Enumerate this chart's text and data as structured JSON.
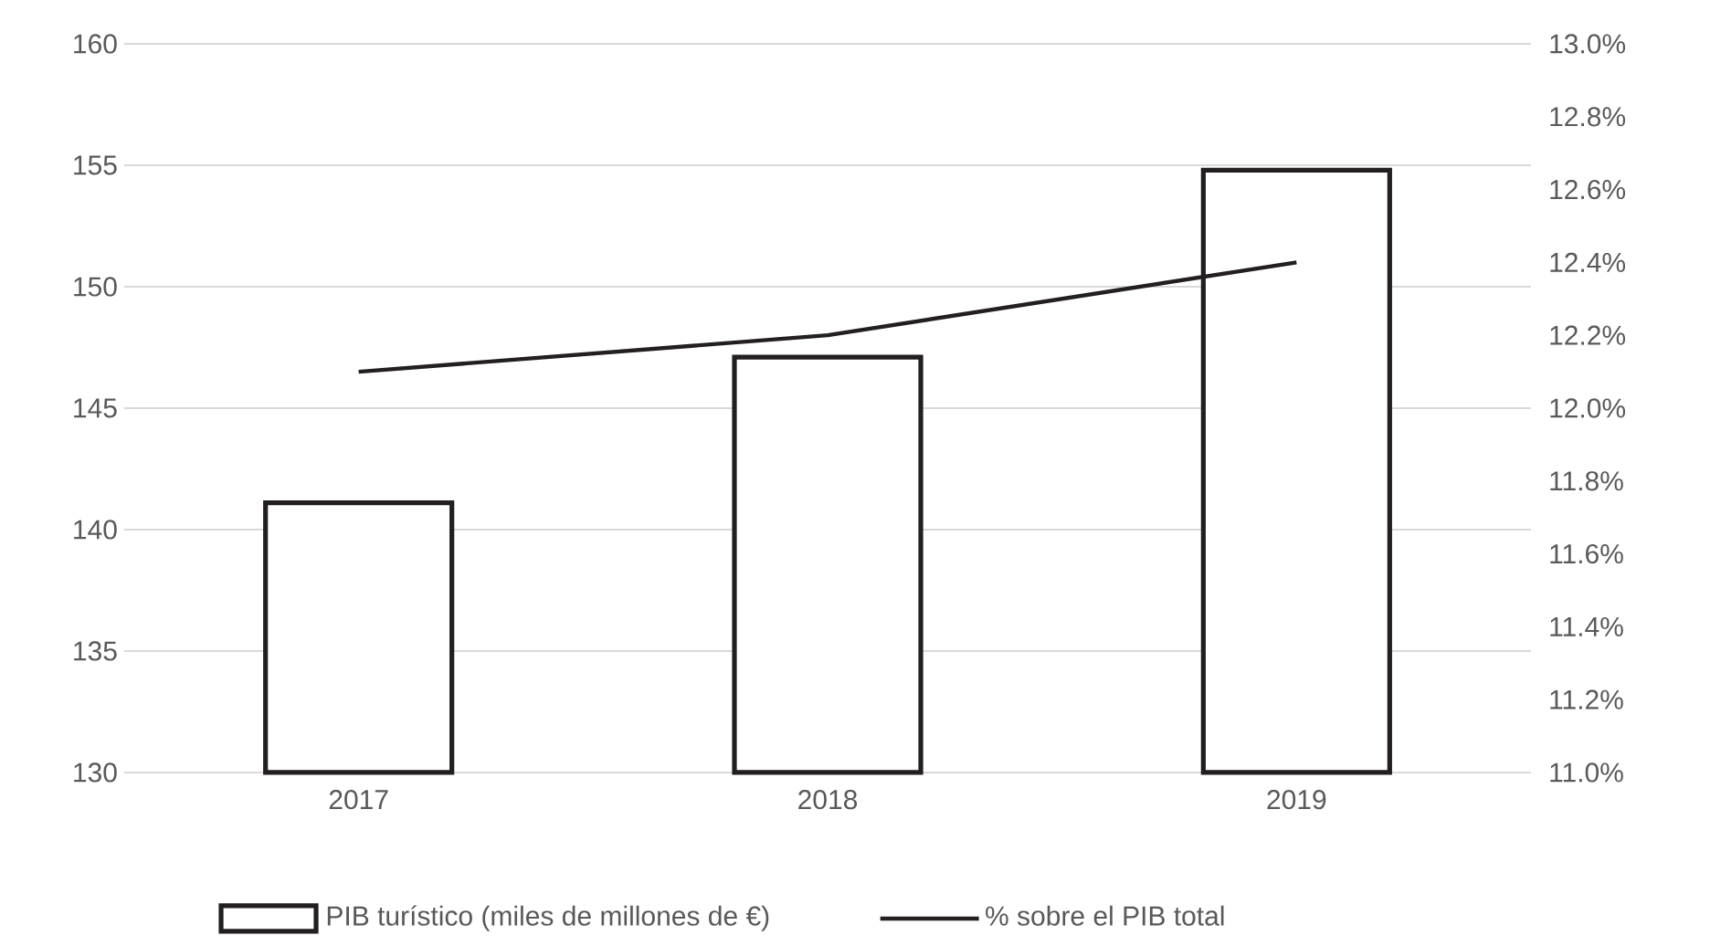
{
  "chart_data": {
    "type": "bar",
    "categories": [
      "2017",
      "2018",
      "2019"
    ],
    "series": [
      {
        "name": "PIB turístico (miles de millones de €)",
        "color": "#231f20",
        "values": [
          141.1,
          147.1,
          154.8
        ]
      },
      {
        "name": "% sobre el PIB total",
        "type": "line",
        "axis": "y2",
        "color": "#231f20",
        "values": [
          12.1,
          12.2,
          12.4
        ]
      }
    ],
    "ylim": [
      130,
      160
    ],
    "yticks": [
      130,
      135,
      140,
      145,
      150,
      155,
      160
    ],
    "y2lim": [
      11.0,
      13.0
    ],
    "y2ticks": [
      {
        "value": 11.0,
        "label": "11.0%"
      },
      {
        "value": 11.2,
        "label": "11.2%"
      },
      {
        "value": 11.4,
        "label": "11.4%"
      },
      {
        "value": 11.6,
        "label": "11.6%"
      },
      {
        "value": 11.8,
        "label": "11.8%"
      },
      {
        "value": 12.0,
        "label": "12.0%"
      },
      {
        "value": 12.2,
        "label": "12.2%"
      },
      {
        "value": 12.4,
        "label": "12.4%"
      },
      {
        "value": 12.6,
        "label": "12.6%"
      },
      {
        "value": 12.8,
        "label": "12.8%"
      },
      {
        "value": 13.0,
        "label": "13.0%"
      }
    ],
    "grid": "y",
    "legend": "bottom"
  }
}
